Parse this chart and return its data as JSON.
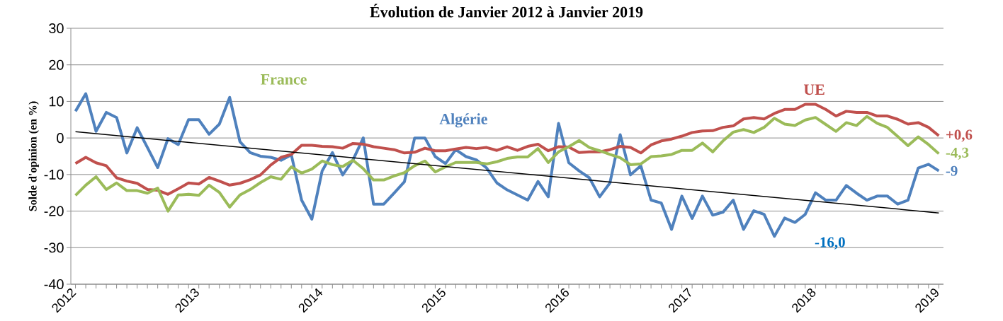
{
  "chart_data": {
    "type": "line",
    "title": "Évolution de Janvier 2012 à Janvier 2019",
    "ylabel": "Solde d'opinion (en %)",
    "x": [
      "2012-01",
      "2012-02",
      "2012-03",
      "2012-04",
      "2012-05",
      "2012-06",
      "2012-07",
      "2012-08",
      "2012-09",
      "2012-10",
      "2012-11",
      "2012-12",
      "2013-01",
      "2013-02",
      "2013-03",
      "2013-04",
      "2013-05",
      "2013-06",
      "2013-07",
      "2013-08",
      "2013-09",
      "2013-10",
      "2013-11",
      "2013-12",
      "2014-01",
      "2014-02",
      "2014-03",
      "2014-04",
      "2014-05",
      "2014-06",
      "2014-07",
      "2014-08",
      "2014-09",
      "2014-10",
      "2014-11",
      "2014-12",
      "2015-01",
      "2015-02",
      "2015-03",
      "2015-04",
      "2015-05",
      "2015-06",
      "2015-07",
      "2015-08",
      "2015-09",
      "2015-10",
      "2015-11",
      "2015-12",
      "2016-01",
      "2016-02",
      "2016-03",
      "2016-04",
      "2016-05",
      "2016-06",
      "2016-07",
      "2016-08",
      "2016-09",
      "2016-10",
      "2016-11",
      "2016-12",
      "2017-01",
      "2017-02",
      "2017-03",
      "2017-04",
      "2017-05",
      "2017-06",
      "2017-07",
      "2017-08",
      "2017-09",
      "2017-10",
      "2017-11",
      "2017-12",
      "2018-01",
      "2018-02",
      "2018-03",
      "2018-04",
      "2018-05",
      "2018-06",
      "2018-07",
      "2018-08",
      "2018-09",
      "2018-10",
      "2018-11",
      "2018-12",
      "2019-01"
    ],
    "xlim": [
      "2011-12-18",
      "2019-01-15"
    ],
    "xticks": [
      "2012",
      "2013",
      "2014",
      "2015",
      "2016",
      "2017",
      "2018",
      "2019"
    ],
    "ylim": [
      -40,
      30
    ],
    "yticks": [
      -40,
      -30,
      -20,
      -10,
      0,
      10,
      20,
      30
    ],
    "grid": "y",
    "series": [
      {
        "name": "Algérie",
        "color": "#4f81bd",
        "values": [
          7.3,
          12.1,
          1.8,
          7.0,
          5.6,
          -4.1,
          2.8,
          -2.6,
          -8.1,
          -0.2,
          -1.8,
          5.0,
          5.0,
          1.0,
          3.8,
          11.1,
          -1.0,
          -4.0,
          -5.0,
          -5.3,
          -6.1,
          -4.6,
          -17.0,
          -22.2,
          -9.0,
          -4.0,
          -10.1,
          -6.0,
          0,
          -18.1,
          -18.1,
          -15.1,
          -12.0,
          0,
          0,
          -5.1,
          -7.0,
          -3.2,
          -5.1,
          -6.0,
          -8.2,
          -12.3,
          -14.2,
          -15.6,
          -17.0,
          -11.9,
          -16.1,
          4.0,
          -6.8,
          -9.0,
          -10.9,
          -16.1,
          -12.3,
          0.9,
          -10.1,
          -7.6,
          -17.0,
          -17.8,
          -25.0,
          -15.9,
          -22.0,
          -15.9,
          -21.1,
          -20.3,
          -17.0,
          -25.0,
          -19.9,
          -20.9,
          -26.9,
          -21.9,
          -23.1,
          -20.9,
          -15.0,
          -17.0,
          -17.0,
          -13.0,
          -15.1,
          -17.0,
          -15.9,
          -15.9,
          -18.1,
          -17.0,
          -8.2,
          -7.2,
          -9
        ],
        "value_labels": [
          null,
          null,
          null,
          null,
          null,
          null,
          null,
          null,
          null,
          null,
          null,
          null,
          null,
          null,
          null,
          null,
          null,
          null,
          null,
          null,
          null,
          null,
          null,
          null,
          null,
          null,
          null,
          null,
          null,
          null,
          null,
          null,
          null,
          null,
          null,
          null,
          null,
          null,
          null,
          null,
          null,
          null,
          null,
          null,
          null,
          null,
          null,
          null,
          null,
          null,
          null,
          null,
          null,
          null,
          null,
          null,
          null,
          null,
          null,
          null,
          null,
          null,
          null,
          null,
          null,
          null,
          null,
          null,
          null,
          null,
          null,
          null,
          null,
          null,
          null,
          null,
          null,
          null,
          null,
          null,
          null,
          null,
          null,
          null,
          "-9"
        ]
      },
      {
        "name": "UE",
        "color": "#c0504d",
        "values": [
          -7.0,
          -5.3,
          -6.8,
          -7.6,
          -10.9,
          -11.8,
          -12.4,
          -14.1,
          -14.3,
          -15.4,
          -13.9,
          -12.3,
          -12.6,
          -10.8,
          -11.8,
          -12.9,
          -12.4,
          -11.4,
          -10.1,
          -7.4,
          -5.3,
          -4.5,
          -2.0,
          -2.0,
          -2.3,
          -2.4,
          -2.8,
          -1.5,
          -1.7,
          -2.4,
          -2.8,
          -3.2,
          -4.1,
          -3.9,
          -2.8,
          -3.5,
          -3.5,
          -3.0,
          -2.6,
          -2.9,
          -2.6,
          -3.4,
          -2.4,
          -3.4,
          -2.3,
          -1.7,
          -3.5,
          -2.4,
          -2.5,
          -4.0,
          -3.8,
          -3.8,
          -3.2,
          -2.3,
          -2.6,
          -4.1,
          -1.9,
          -0.8,
          -0.3,
          0.5,
          1.5,
          1.9,
          2.0,
          2.9,
          3.3,
          5.2,
          5.6,
          5.2,
          6.7,
          7.8,
          7.8,
          9.2,
          9.2,
          7.8,
          6.0,
          7.3,
          7.0,
          7.0,
          6.0,
          6.0,
          5.1,
          3.8,
          4.2,
          2.9,
          0.6
        ],
        "value_labels": [
          null,
          null,
          null,
          null,
          null,
          null,
          null,
          null,
          null,
          null,
          null,
          null,
          null,
          null,
          null,
          null,
          null,
          null,
          null,
          null,
          null,
          null,
          null,
          null,
          null,
          null,
          null,
          null,
          null,
          null,
          null,
          null,
          null,
          null,
          null,
          null,
          null,
          null,
          null,
          null,
          null,
          null,
          null,
          null,
          null,
          null,
          null,
          null,
          null,
          null,
          null,
          null,
          null,
          null,
          null,
          null,
          null,
          null,
          null,
          null,
          null,
          null,
          null,
          null,
          null,
          null,
          null,
          null,
          null,
          null,
          null,
          null,
          null,
          null,
          null,
          null,
          null,
          null,
          null,
          null,
          null,
          null,
          null,
          null,
          "+0,6"
        ]
      },
      {
        "name": "France",
        "color": "#9bbb59",
        "values": [
          -15.7,
          -12.9,
          -10.6,
          -14.1,
          -12.3,
          -14.4,
          -14.4,
          -15.1,
          -13.7,
          -20.0,
          -15.6,
          -15.4,
          -15.7,
          -12.9,
          -14.9,
          -18.9,
          -15.6,
          -14.1,
          -12.2,
          -10.6,
          -11.3,
          -7.9,
          -9.6,
          -8.5,
          -6.3,
          -7.3,
          -7.8,
          -6.1,
          -8.4,
          -11.5,
          -11.5,
          -10.4,
          -9.5,
          -7.6,
          -6.3,
          -9.3,
          -7.9,
          -6.7,
          -6.7,
          -6.7,
          -7.1,
          -6.5,
          -5.6,
          -5.2,
          -5.2,
          -2.9,
          -6.7,
          -3.8,
          -2.4,
          -0.7,
          -2.6,
          -3.5,
          -4.5,
          -5.4,
          -7.3,
          -7.1,
          -5.1,
          -4.9,
          -4.5,
          -3.4,
          -3.4,
          -1.4,
          -3.8,
          -0.8,
          1.6,
          2.3,
          1.5,
          2.9,
          5.4,
          3.8,
          3.4,
          4.9,
          5.6,
          3.7,
          1.8,
          4.2,
          3.4,
          5.9,
          4.0,
          2.9,
          0.4,
          -2.1,
          0.3,
          -1.8,
          -4.3
        ],
        "value_labels": [
          null,
          null,
          null,
          null,
          null,
          null,
          null,
          null,
          null,
          null,
          null,
          null,
          null,
          null,
          null,
          null,
          null,
          null,
          null,
          null,
          null,
          null,
          null,
          null,
          null,
          null,
          null,
          null,
          null,
          null,
          null,
          null,
          null,
          null,
          null,
          null,
          null,
          null,
          null,
          null,
          null,
          null,
          null,
          null,
          null,
          null,
          null,
          null,
          null,
          null,
          null,
          null,
          null,
          null,
          null,
          null,
          null,
          null,
          null,
          null,
          null,
          null,
          null,
          null,
          null,
          null,
          null,
          null,
          null,
          null,
          null,
          null,
          null,
          null,
          null,
          null,
          null,
          null,
          null,
          null,
          null,
          null,
          null,
          null,
          "-4,3"
        ]
      },
      {
        "type": "line",
        "color": "#000000",
        "x": [
          "2012-01",
          "2019-01"
        ],
        "values": [
          1.7,
          -20.5
        ]
      }
    ],
    "annotations": [
      "-16,0"
    ]
  }
}
